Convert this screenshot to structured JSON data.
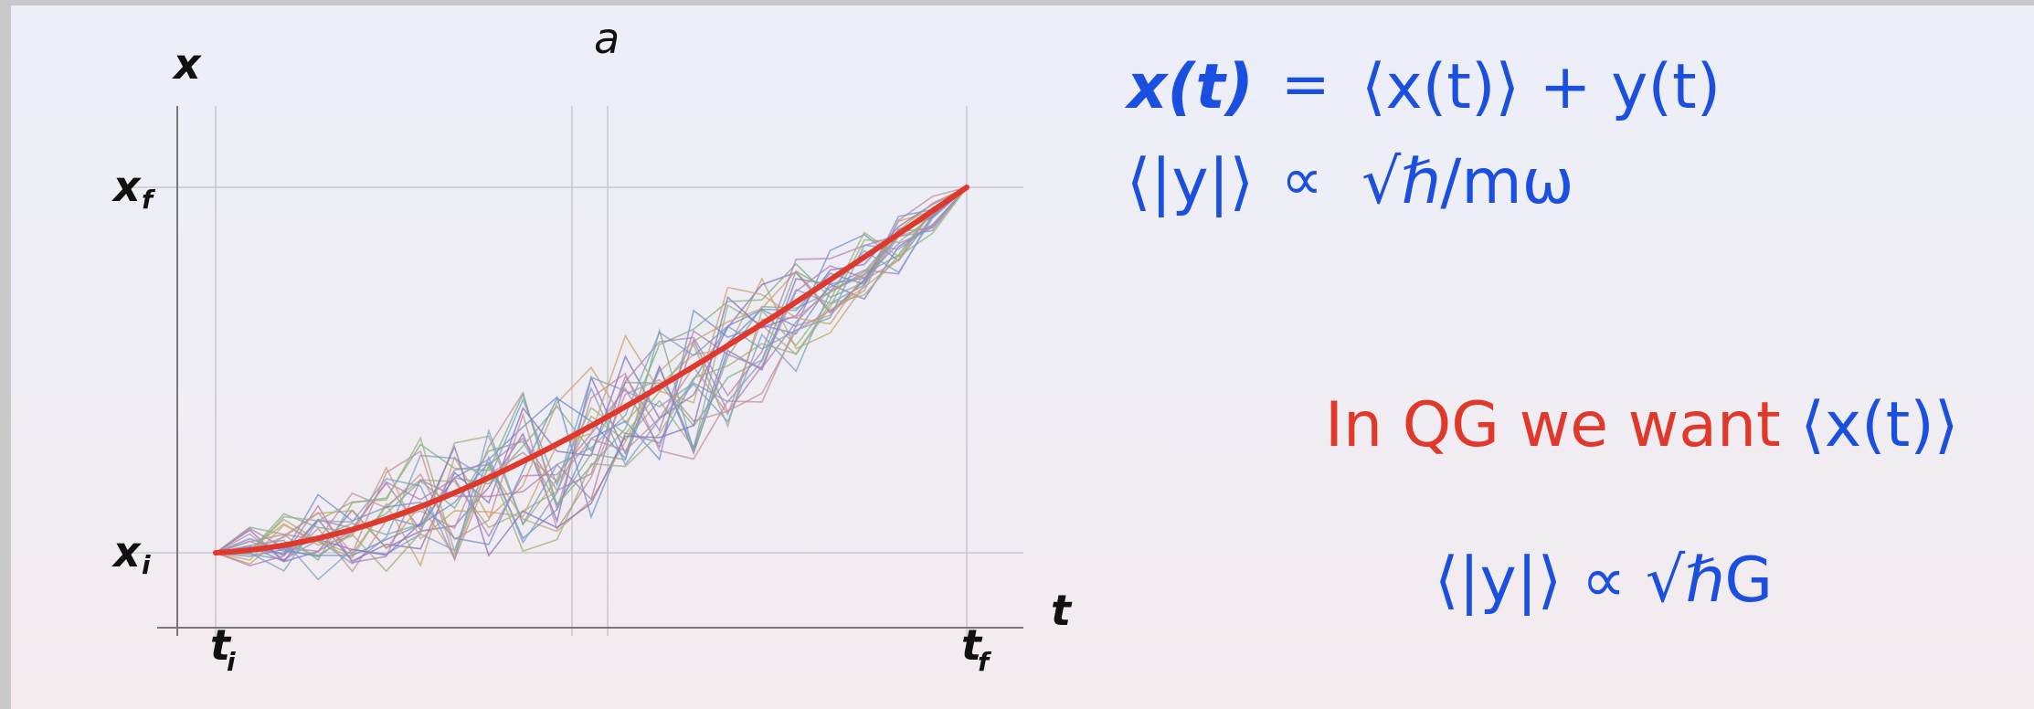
{
  "diagram": {
    "axis_x_label": "x",
    "axis_t_label": "t",
    "top_label": "a",
    "xf_label": "x",
    "xf_sub": "f",
    "xi_label": "x",
    "xi_sub": "i",
    "ti_label": "t",
    "ti_sub": "i",
    "tf_label": "t",
    "tf_sub": "f",
    "classical_path_color": "#e0382b",
    "path_colors": [
      "#8a6fc0",
      "#7fae88",
      "#c7a36a",
      "#6d8fd0",
      "#b07fb5",
      "#9bb07a",
      "#7a9fc7",
      "#c28f9a"
    ]
  },
  "equations": {
    "row1": {
      "lhs": "x(t)",
      "op": "=",
      "rhs": "⟨x(t)⟩ + y(t)"
    },
    "row2": {
      "lhs": "⟨|y|⟩",
      "op": "∝",
      "rhs": "√ℏ/mω"
    }
  },
  "qg_text": {
    "prefix": "In QG we want",
    "expr": "⟨x(t)⟩"
  },
  "final_expr": "⟨|y|⟩ ∝ √ℏG"
}
